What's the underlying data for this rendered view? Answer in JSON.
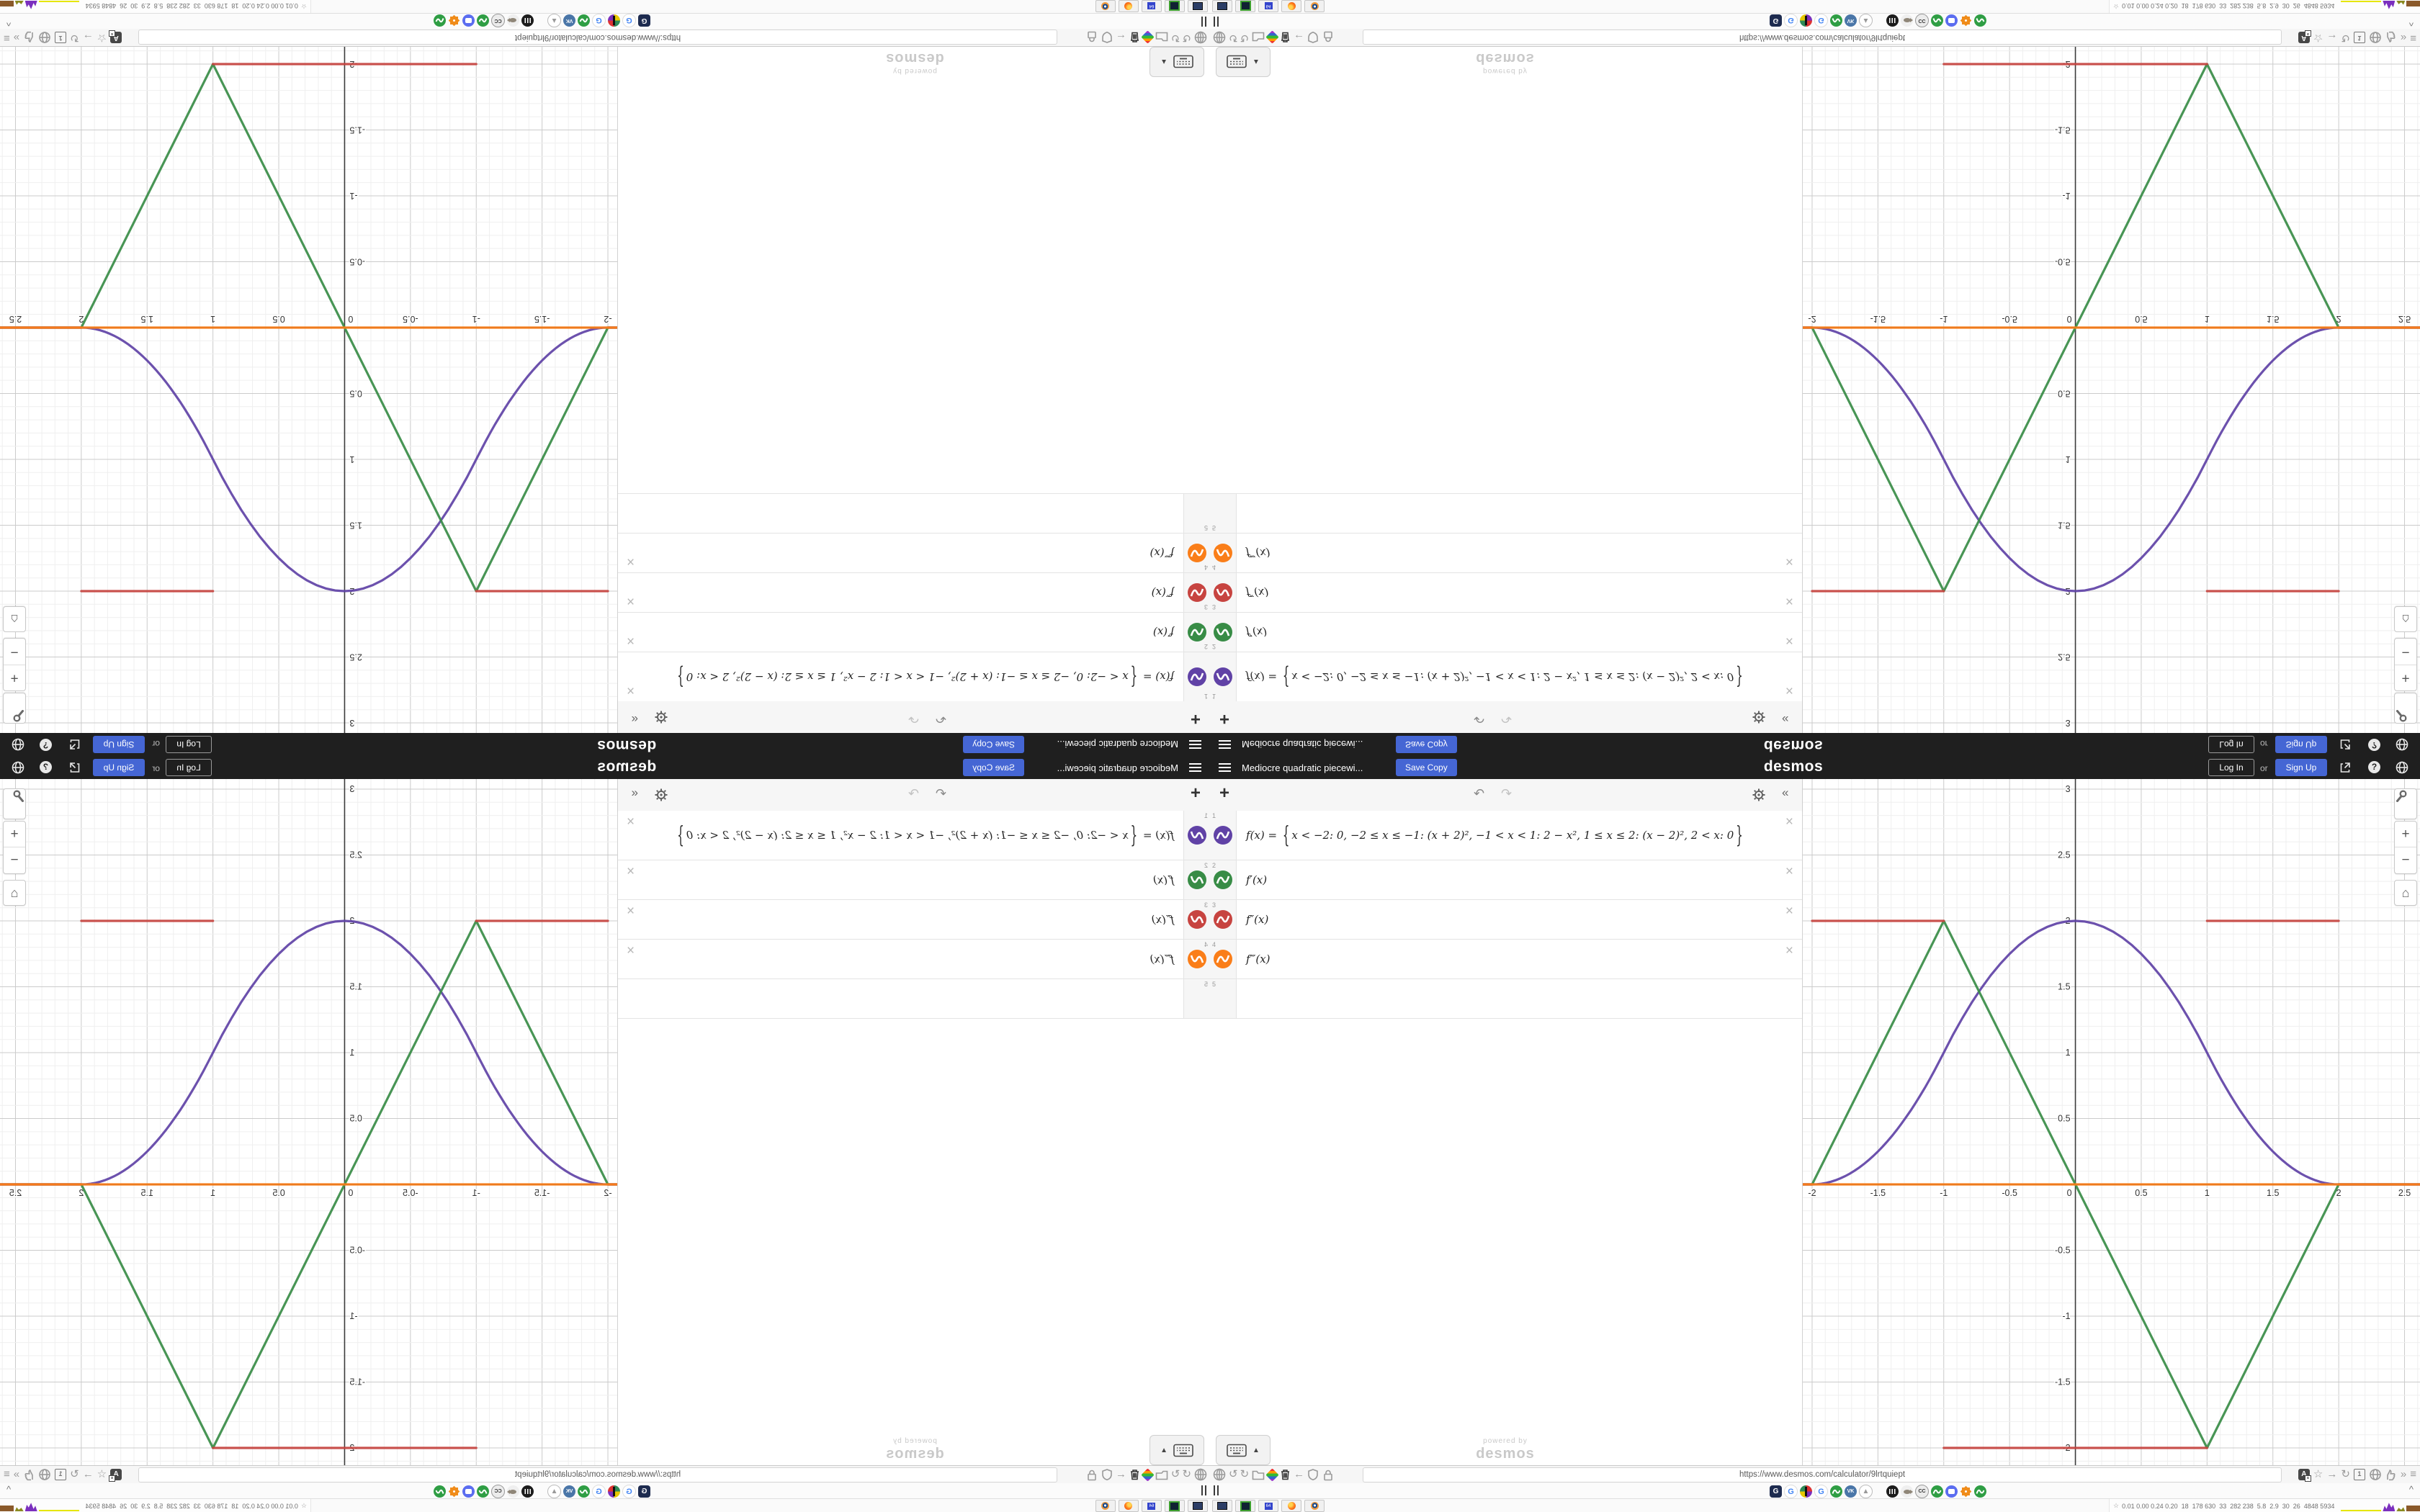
{
  "meta": {
    "description": "Desmos graphing calculator screenshot tiled 2x2 with mirrored copies",
    "accent_blue": "#4566d4",
    "header_bg": "#1f1f1f"
  },
  "glyphs": {
    "plus": "+",
    "minus": "−",
    "undo": "↶",
    "redo": "↷",
    "collapse": "«",
    "close": "×",
    "caret": "^",
    "home": "⌂",
    "tri_up": "▲",
    "back": "←",
    "forward": "→",
    "reload": "↻",
    "star": "☆",
    "chevrons": "»",
    "menu": "≡",
    "gauge1": "↺",
    "gauge2": "↻",
    "help": "?",
    "tray_star": "☆",
    "g_letter": "G",
    "vk": "VK",
    "cc": "CC",
    "translate_a": "A",
    "translate_sub": "a",
    "archive_1": "1",
    "floppy_64": "64"
  },
  "desmos": {
    "header": {
      "title": "Mediocre quadratic piecewi...",
      "save_copy": "Save Copy",
      "logo": "desmos",
      "log_in": "Log In",
      "or": "or",
      "sign_up": "Sign Up"
    },
    "expressions": {
      "rows": [
        {
          "index": "1",
          "color": "#6042a6",
          "lhs": "f(x) = ",
          "brace_open": "{",
          "body": "x < −2: 0, −2 ≤ x ≤ −1: (x + 2)², −1 < x < 1: 2 − x², 1 ≤ x ≤ 2: (x − 2)², 2 < x: 0",
          "brace_close": "}"
        },
        {
          "index": "2",
          "color": "#388c46",
          "latex": "f′(x)"
        },
        {
          "index": "3",
          "color": "#c74440",
          "latex": "f″(x)"
        },
        {
          "index": "4",
          "color": "#fa7e19",
          "latex": "f‴(x)"
        },
        {
          "index": "5",
          "color": "",
          "latex": ""
        }
      ]
    },
    "watermark": {
      "line1": "powered by",
      "line2": "desmos"
    }
  },
  "browser": {
    "url": "https://www.desmos.com/calculator/9lrtquiept",
    "toolbar_left_icons": [
      "globe-grid",
      "reload-gauge-1",
      "reload-gauge-2",
      "folder",
      "rainbow-brush",
      "trash",
      "back-arrow",
      "shield",
      "lock"
    ],
    "toolbar_right_icons": [
      "translate",
      "star",
      "forward-arrow",
      "reload",
      "archive-1",
      "globe",
      "thumb",
      "chevrons",
      "menu"
    ],
    "extension_icons": [
      "g-dark-app",
      "google-g",
      "color-wheel",
      "google-g",
      "desmos-wave",
      "vk",
      "thumb-outline",
      "internet-archive",
      "fish",
      "creative-commons",
      "desmos-wave",
      "chat-bubble",
      "orange-gear",
      "desmos-wave"
    ],
    "taskbar": {
      "apps": [
        "screenshot-tool",
        "green-terminal",
        "floppy-64",
        "firefox",
        "blender"
      ],
      "tray_text": "0.01 0.00 0.24 0.20  18  178 630  33  282 238  5.8  2.9  30  26  4848 5934"
    }
  },
  "chart_data": {
    "type": "line",
    "title": "",
    "xlabel": "",
    "ylabel": "",
    "x_visible": [
      -2.071,
      2.6175
    ],
    "y_visible": [
      -2.131,
      3.0765
    ],
    "grid": {
      "minor_step": 0.1,
      "major_step": 0.5,
      "grid_on": true
    },
    "colors": {
      "grid_minor": "#efefef",
      "grid_major": "#cbcbcb",
      "axis": "#3c3c3c",
      "label": "#333333"
    },
    "x_ticks": [
      -2,
      -1.5,
      -1,
      -0.5,
      0,
      0.5,
      1,
      1.5,
      2,
      2.5
    ],
    "x_tick_labels": [
      "-2",
      "-1.5",
      "-1",
      "-0.5",
      "0",
      "0.5",
      "1",
      "1.5",
      "2",
      "2.5"
    ],
    "y_ticks": [
      3,
      2.5,
      2,
      1.5,
      1,
      0.5,
      -0.5,
      -1,
      -1.5,
      -2
    ],
    "y_tick_labels": [
      "3",
      "2.5",
      "2",
      "1.5",
      "1",
      "0.5",
      "-0.5",
      "-1",
      "-1.5",
      "-2"
    ],
    "series": [
      {
        "name": "f(x) piecewise",
        "color": "#6042a6",
        "pieces": [
          {
            "domain": [
              -2.08,
              -2
            ],
            "poly": [
              0
            ]
          },
          {
            "domain": [
              -2,
              -1
            ],
            "poly": [
              4,
              4,
              1
            ]
          },
          {
            "domain": [
              -1,
              1
            ],
            "poly": [
              2,
              0,
              -1
            ]
          },
          {
            "domain": [
              1,
              2
            ],
            "poly": [
              4,
              -4,
              1
            ]
          },
          {
            "domain": [
              2,
              2.62
            ],
            "poly": [
              0
            ]
          }
        ]
      },
      {
        "name": "f'(x)",
        "color": "#388c46",
        "pieces": [
          {
            "domain": [
              -2.08,
              -2
            ],
            "poly": [
              0
            ]
          },
          {
            "domain": [
              -2,
              -1
            ],
            "poly": [
              4,
              2
            ]
          },
          {
            "domain": [
              -1,
              1
            ],
            "poly": [
              0,
              -2
            ]
          },
          {
            "domain": [
              1,
              2
            ],
            "poly": [
              -4,
              2
            ]
          },
          {
            "domain": [
              2,
              2.62
            ],
            "poly": [
              0
            ]
          }
        ]
      },
      {
        "name": "f''(x)",
        "color": "#c74440",
        "pieces": [
          {
            "domain": [
              -2.08,
              -2
            ],
            "poly": [
              0
            ]
          },
          {
            "domain": [
              -2,
              -1
            ],
            "poly": [
              2
            ]
          },
          {
            "domain": [
              -1,
              1
            ],
            "poly": [
              -2
            ]
          },
          {
            "domain": [
              1,
              2
            ],
            "poly": [
              2
            ]
          },
          {
            "domain": [
              2,
              2.62
            ],
            "poly": [
              0
            ]
          }
        ]
      },
      {
        "name": "f'''(x)",
        "color": "#fa7e19",
        "pieces": [
          {
            "domain": [
              -2.08,
              2.62
            ],
            "poly": [
              0
            ]
          }
        ]
      }
    ]
  }
}
